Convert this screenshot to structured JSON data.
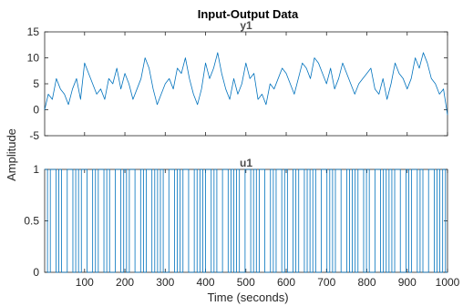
{
  "chart_data": {
    "type": "line",
    "title": "Input-Output Data",
    "xlabel": "Time (seconds)",
    "ylabel": "Amplitude",
    "xlim": [
      1,
      1000
    ],
    "x_ticks": [
      "100",
      "200",
      "300",
      "400",
      "500",
      "600",
      "700",
      "800",
      "900",
      "1000"
    ],
    "grid": false,
    "color": "#0072bd",
    "panels": [
      {
        "name": "y1",
        "ylim": [
          -5,
          15
        ],
        "y_ticks": [
          "-5",
          "0",
          "5",
          "10",
          "15"
        ],
        "series": [
          {
            "x": [
              1,
              10,
              20,
              30,
              40,
              50,
              60,
              70,
              80,
              90,
              100,
              110,
              120,
              130,
              140,
              150,
              160,
              170,
              180,
              190,
              200,
              210,
              220,
              230,
              240,
              250,
              260,
              270,
              280,
              290,
              300,
              310,
              320,
              330,
              340,
              350,
              360,
              370,
              380,
              390,
              400,
              410,
              420,
              430,
              440,
              450,
              460,
              470,
              480,
              490,
              500,
              510,
              520,
              530,
              540,
              550,
              560,
              570,
              580,
              590,
              600,
              610,
              620,
              630,
              640,
              650,
              660,
              670,
              680,
              690,
              700,
              710,
              720,
              730,
              740,
              750,
              760,
              770,
              780,
              790,
              800,
              810,
              820,
              830,
              840,
              850,
              860,
              870,
              880,
              890,
              900,
              910,
              920,
              930,
              940,
              950,
              960,
              970,
              980,
              990,
              1000
            ],
            "values": [
              0,
              3,
              2,
              6,
              4,
              3,
              1,
              4,
              6,
              2,
              9,
              7,
              5,
              3,
              4,
              2,
              6,
              5,
              8,
              4,
              7,
              5,
              2,
              4,
              6,
              10,
              8,
              4,
              1,
              3,
              5,
              6,
              4,
              8,
              7,
              10,
              6,
              3,
              1,
              4,
              9,
              6,
              8,
              11,
              7,
              4,
              2,
              6,
              3,
              5,
              9,
              6,
              7,
              2,
              3,
              1,
              5,
              4,
              6,
              8,
              7,
              5,
              3,
              6,
              9,
              8,
              6,
              10,
              9,
              7,
              5,
              8,
              4,
              6,
              9,
              7,
              5,
              3,
              5,
              6,
              7,
              8,
              4,
              3,
              6,
              2,
              5,
              9,
              7,
              6,
              4,
              6,
              10,
              8,
              11,
              9,
              6,
              5,
              3,
              4,
              -1
            ]
          }
        ]
      },
      {
        "name": "u1",
        "ylim": [
          0,
          1
        ],
        "y_ticks": [
          "0",
          "0.5",
          "1"
        ],
        "series": [
          {
            "x": [
              1,
              8,
              15,
              22,
              29,
              36,
              43,
              50,
              57,
              64,
              71,
              78,
              85,
              92,
              99,
              106,
              113,
              120,
              127,
              134,
              141,
              148,
              155,
              162,
              169,
              176,
              183,
              190,
              197,
              204,
              211,
              218,
              225,
              232,
              239,
              246,
              253,
              260,
              267,
              274,
              281,
              288,
              295,
              302,
              309,
              316,
              323,
              330,
              337,
              344,
              351,
              358,
              365,
              372,
              379,
              386,
              393,
              400,
              407,
              414,
              421,
              428,
              435,
              442,
              449,
              456,
              463,
              470,
              477,
              484,
              491,
              498,
              505,
              512,
              519,
              526,
              533,
              540,
              547,
              554,
              561,
              568,
              575,
              582,
              589,
              596,
              603,
              610,
              617,
              624,
              631,
              638,
              645,
              652,
              659,
              666,
              673,
              680,
              687,
              694,
              701,
              708,
              715,
              722,
              729,
              736,
              743,
              750,
              757,
              764,
              771,
              778,
              785,
              792,
              799,
              806,
              813,
              820,
              827,
              834,
              841,
              848,
              855,
              862,
              869,
              876,
              883,
              890,
              897,
              904,
              911,
              918,
              925,
              932,
              939,
              946,
              953,
              960,
              967,
              974,
              981,
              988,
              995
            ],
            "values": [
              1,
              0,
              1,
              1,
              0,
              1,
              0,
              0,
              1,
              1,
              0,
              1,
              0,
              1,
              1,
              0,
              0,
              1,
              0,
              1,
              1,
              0,
              1,
              0,
              0,
              1,
              1,
              0,
              1,
              0,
              1,
              1,
              0,
              0,
              1,
              0,
              1,
              1,
              0,
              1,
              0,
              1,
              0,
              0,
              1,
              1,
              0,
              1,
              0,
              1,
              1,
              0,
              0,
              1,
              0,
              1,
              0,
              1,
              1,
              0,
              1,
              0,
              0,
              1,
              1,
              0,
              1,
              0,
              1,
              0,
              0,
              1,
              1,
              0,
              1,
              0,
              1,
              1,
              0,
              0,
              1,
              0,
              1,
              1,
              0,
              1,
              0,
              0,
              1,
              0,
              1,
              1,
              0,
              1,
              0,
              1,
              0,
              0,
              1,
              1,
              0,
              1,
              0,
              1,
              1,
              0,
              0,
              1,
              0,
              1,
              0,
              1,
              1,
              0,
              1,
              0,
              0,
              1,
              1,
              0,
              1,
              0,
              1,
              0,
              1,
              1,
              0,
              0,
              1,
              0,
              1,
              1,
              0,
              1,
              0,
              0,
              1,
              1,
              0,
              1,
              0,
              1,
              0
            ]
          }
        ]
      }
    ]
  }
}
